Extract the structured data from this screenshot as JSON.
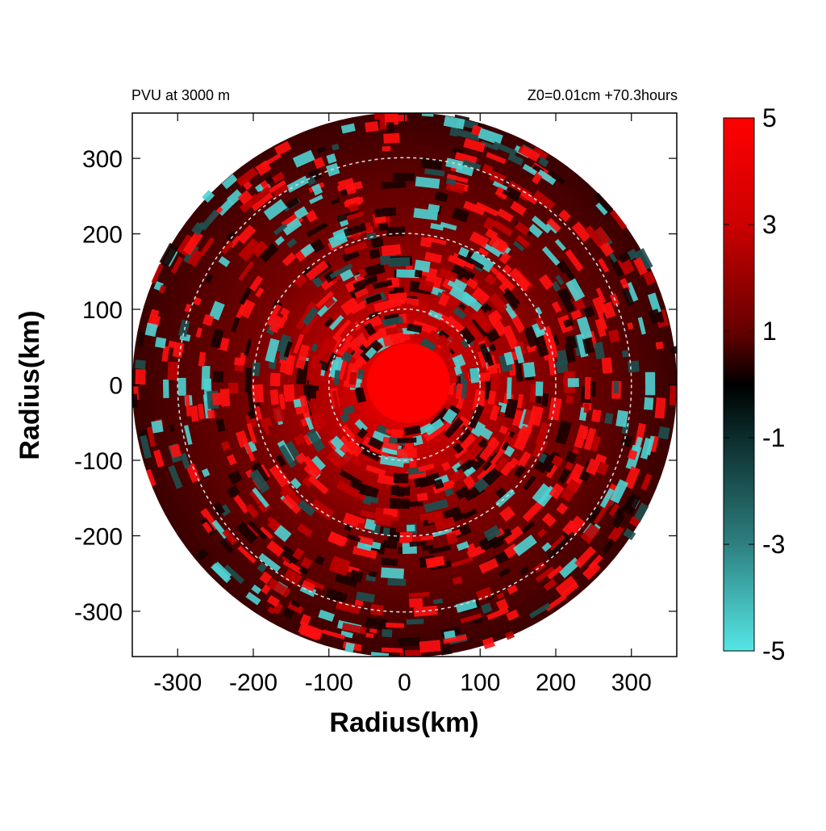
{
  "header": {
    "left": "PVU at  3000 m",
    "right": "Z0=0.01cm  +70.3hours"
  },
  "chart_data": {
    "type": "heatmap",
    "title": "PVU at  3000 m",
    "subtitle": "Z0=0.01cm  +70.3hours",
    "xlabel": "Radius(km)",
    "ylabel": "Radius(km)",
    "xlim": [
      -360,
      360
    ],
    "ylim": [
      -360,
      360
    ],
    "x_ticks": [
      -300,
      -200,
      -100,
      0,
      100,
      200,
      300
    ],
    "y_ticks": [
      300,
      200,
      100,
      0,
      -100,
      -200,
      -300
    ],
    "domain_radius_km": 360,
    "reference_circles_km": [
      100,
      200,
      300
    ],
    "colorbar": {
      "range": [
        -5,
        5
      ],
      "ticks": [
        5,
        3,
        1,
        -1,
        -3,
        -5
      ],
      "colors": {
        "high": "#ff0000",
        "mid": "#000000",
        "low": "#55e6e6"
      }
    },
    "features": {
      "core_radius_km": 55,
      "core_value": 5
    }
  }
}
